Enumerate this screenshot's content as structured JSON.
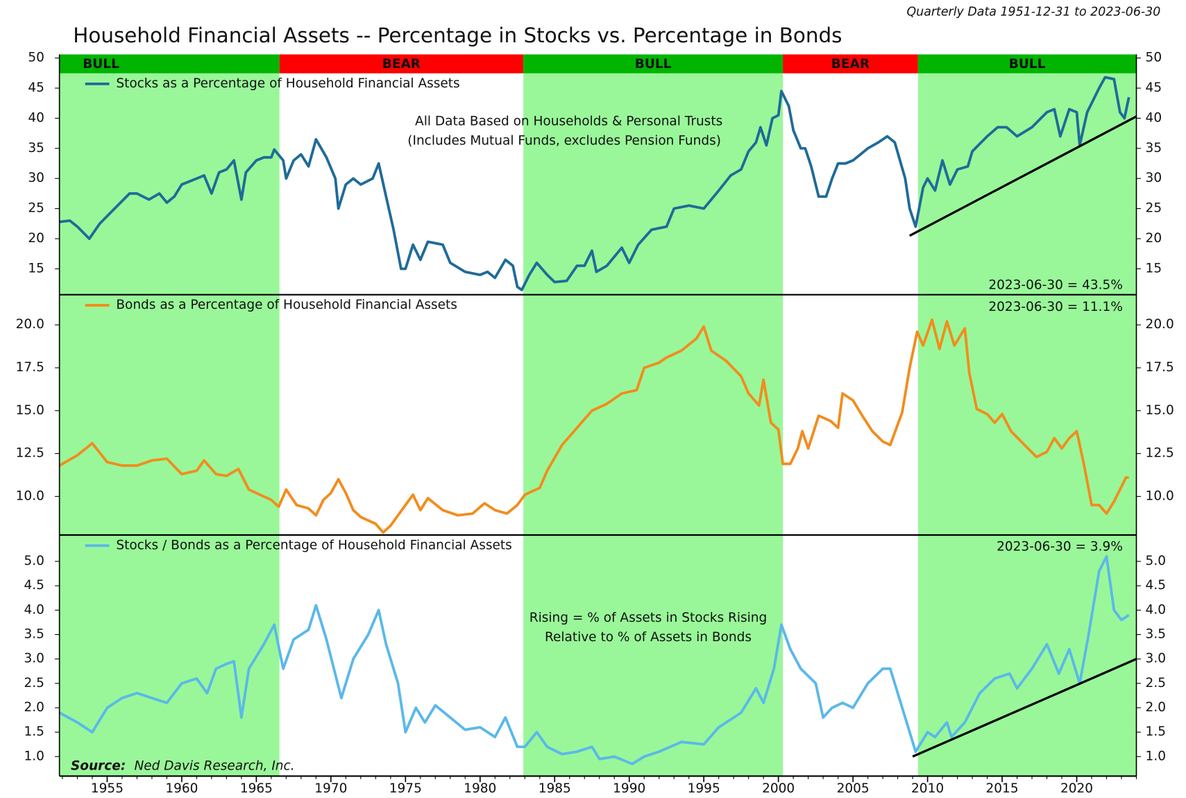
{
  "title": "Household Financial Assets -- Percentage in Stocks vs. Percentage in Bonds",
  "subtitle": "Quarterly Data 1951-12-31 to 2023-06-30",
  "xlim": [
    1951.8,
    2024
  ],
  "xticks": [
    1955,
    1960,
    1965,
    1970,
    1975,
    1980,
    1985,
    1990,
    1995,
    2000,
    2005,
    2010,
    2015,
    2020
  ],
  "shade_color": "#99f799",
  "regimes": [
    {
      "label": "BULL",
      "start": 1951.8,
      "end": 1966.55,
      "color": "#00b400",
      "shaded": true
    },
    {
      "label": "BEAR",
      "start": 1966.55,
      "end": 1982.9,
      "color": "#ff0000",
      "shaded": false
    },
    {
      "label": "BULL",
      "start": 1982.9,
      "end": 2000.3,
      "color": "#00b400",
      "shaded": true
    },
    {
      "label": "BEAR",
      "start": 2000.3,
      "end": 2009.36,
      "color": "#ff0000",
      "shaded": false
    },
    {
      "label": "BULL",
      "start": 2009.36,
      "end": 2024,
      "color": "#00b400",
      "shaded": true
    }
  ],
  "source_label": "Source:",
  "source": "Ned Davis Research, Inc.",
  "chart_data": [
    {
      "type": "line",
      "ylim": [
        10.7,
        50.6
      ],
      "yticks": [
        15,
        20,
        25,
        30,
        35,
        40,
        45,
        50
      ],
      "annotations": [
        "All Data Based on Households & Personal Trusts",
        "(Includes Mutual Funds, excludes Pension Funds)"
      ],
      "last_label": "2023-06-30 = 43.5%",
      "trendline": {
        "color": "#000000",
        "x": [
          2008.8,
          2024
        ],
        "values": [
          20.5,
          40.3
        ]
      },
      "series": [
        {
          "name": "Stocks as a Percentage of Household Financial Assets",
          "color": "#1f6b99",
          "x": [
            1951.8,
            1952.5,
            1953,
            1953.8,
            1954.5,
            1955.5,
            1956.5,
            1957,
            1957.8,
            1958.5,
            1959,
            1959.5,
            1960,
            1961,
            1961.5,
            1962,
            1962.5,
            1963,
            1963.5,
            1964,
            1964.3,
            1965,
            1965.5,
            1966,
            1966.2,
            1966.8,
            1967,
            1967.5,
            1968,
            1968.5,
            1969,
            1969.7,
            1970.3,
            1970.5,
            1971,
            1971.5,
            1972,
            1972.8,
            1973.2,
            1973.7,
            1974.2,
            1974.7,
            1975,
            1975.5,
            1976,
            1976.5,
            1977.5,
            1978,
            1979,
            1980,
            1980.5,
            1981,
            1981.7,
            1982.2,
            1982.5,
            1982.8,
            1983.3,
            1983.8,
            1984.5,
            1985,
            1985.8,
            1986.5,
            1987,
            1987.5,
            1987.8,
            1988.5,
            1989.5,
            1990,
            1990.6,
            1991.5,
            1992.5,
            1993,
            1994,
            1995,
            1996,
            1996.8,
            1997.5,
            1998,
            1998.5,
            1998.8,
            1999.2,
            1999.6,
            2000,
            2000.2,
            2000.7,
            2001,
            2001.5,
            2001.8,
            2002.2,
            2002.7,
            2003.2,
            2003.6,
            2004,
            2004.5,
            2005,
            2005.5,
            2006,
            2006.7,
            2007.3,
            2007.8,
            2008.5,
            2008.8,
            2009.2,
            2009.7,
            2010,
            2010.5,
            2011,
            2011.5,
            2012,
            2012.7,
            2013,
            2014,
            2014.7,
            2015.3,
            2016,
            2017,
            2018,
            2018.5,
            2018.9,
            2019.5,
            2020,
            2020.2,
            2020.7,
            2021.5,
            2021.9,
            2022.5,
            2022.9,
            2023.2,
            2023.5
          ],
          "values": [
            22.8,
            23,
            22,
            20,
            22.5,
            25,
            27.5,
            27.5,
            26.5,
            27.5,
            26,
            27,
            29,
            30,
            30.5,
            27.5,
            31,
            31.5,
            33,
            26.5,
            31,
            33,
            33.5,
            33.5,
            34.8,
            33,
            30,
            33,
            34,
            32,
            36.5,
            33.5,
            30,
            25,
            29,
            30,
            29,
            30,
            32.5,
            27,
            21.5,
            15,
            15,
            19,
            16.5,
            19.5,
            19,
            16,
            14.5,
            14,
            14.5,
            13.5,
            16.5,
            15.5,
            12,
            11.5,
            14,
            16,
            14,
            12.8,
            13,
            15.5,
            15.5,
            18,
            14.5,
            15.5,
            18.5,
            16,
            19,
            21.5,
            22,
            25,
            25.5,
            25,
            28,
            30.5,
            31.5,
            34.5,
            36,
            38.5,
            35.5,
            40,
            40.5,
            44.5,
            42,
            38,
            35,
            35,
            32,
            27,
            27,
            30,
            32.5,
            32.5,
            33,
            34,
            35,
            36,
            37,
            36,
            30,
            25,
            22,
            28.5,
            30,
            28,
            33,
            29,
            31.5,
            32,
            34.5,
            37,
            38.5,
            38.5,
            37,
            38.5,
            41,
            41.5,
            37,
            41.5,
            41,
            35.5,
            41,
            45,
            46.8,
            46.5,
            41,
            40,
            43.5
          ]
        }
      ]
    },
    {
      "type": "line",
      "ylim": [
        7.75,
        21.76
      ],
      "yticks": [
        {
          "value": 10,
          "label": "10.0"
        },
        {
          "value": 12.5,
          "label": "12.5"
        },
        {
          "value": 15,
          "label": "15.0"
        },
        {
          "value": 17.5,
          "label": "17.5"
        },
        {
          "value": 20,
          "label": "20.0"
        }
      ],
      "last_label": "2023-06-30 = 11.1%",
      "series": [
        {
          "name": "Bonds as a Percentage of Household Financial Assets",
          "color": "#f28c1e",
          "x": [
            1951.8,
            1953,
            1954,
            1955,
            1956,
            1957,
            1958,
            1959,
            1960,
            1961,
            1961.5,
            1962.3,
            1963,
            1963.8,
            1964.5,
            1965,
            1966,
            1966.5,
            1967,
            1967.7,
            1968.5,
            1969,
            1969.5,
            1970,
            1970.5,
            1971,
            1971.5,
            1972,
            1973,
            1973.5,
            1974,
            1975,
            1975.5,
            1976,
            1976.5,
            1977.5,
            1978.5,
            1979.5,
            1980.3,
            1981,
            1981.8,
            1982.5,
            1983,
            1984,
            1984.5,
            1985.5,
            1986.5,
            1987.5,
            1988.5,
            1989.5,
            1990.5,
            1991,
            1992,
            1992.5,
            1993.5,
            1994.5,
            1995,
            1995.5,
            1996.5,
            1997.5,
            1998,
            1998.7,
            1999,
            1999.5,
            2000,
            2000.3,
            2000.8,
            2001.3,
            2001.6,
            2002,
            2002.7,
            2003.5,
            2004,
            2004.3,
            2005,
            2005.7,
            2006.3,
            2007,
            2007.5,
            2008.3,
            2008.8,
            2009.3,
            2009.7,
            2010.3,
            2010.8,
            2011.3,
            2011.8,
            2012.5,
            2012.8,
            2013.3,
            2014,
            2014.5,
            2015,
            2015.6,
            2016.5,
            2017.3,
            2018,
            2018.5,
            2019,
            2019.5,
            2020,
            2020.5,
            2021,
            2021.5,
            2022,
            2022.5,
            2023.3,
            2023.5
          ],
          "values": [
            11.8,
            12.4,
            13.1,
            12,
            11.8,
            11.8,
            12.1,
            12.2,
            11.3,
            11.5,
            12.1,
            11.3,
            11.2,
            11.6,
            10.4,
            10.2,
            9.8,
            9.4,
            10.4,
            9.5,
            9.3,
            8.9,
            9.8,
            10.2,
            11,
            10.2,
            9.2,
            8.8,
            8.4,
            7.9,
            8.3,
            9.5,
            10.1,
            9.2,
            9.9,
            9.2,
            8.9,
            9,
            9.6,
            9.2,
            9,
            9.5,
            10.1,
            10.5,
            11.5,
            13,
            14,
            15,
            15.4,
            16,
            16.2,
            17.5,
            17.8,
            18.1,
            18.5,
            19.2,
            19.9,
            18.5,
            17.9,
            17,
            16,
            15.3,
            16.8,
            14.3,
            13.9,
            11.9,
            11.9,
            12.8,
            13.8,
            12.8,
            14.7,
            14.4,
            14,
            16,
            15.6,
            14.6,
            13.8,
            13.2,
            13,
            14.9,
            17.5,
            19.6,
            18.8,
            20.3,
            18.6,
            20.2,
            18.8,
            19.8,
            17.2,
            15.1,
            14.8,
            14.3,
            14.8,
            13.8,
            13,
            12.3,
            12.6,
            13.4,
            12.8,
            13.4,
            13.8,
            11.8,
            9.5,
            9.5,
            9,
            9.7,
            11.1,
            11.1
          ]
        }
      ]
    },
    {
      "type": "line",
      "ylim": [
        0.6,
        5.54
      ],
      "yticks": [
        {
          "value": 1,
          "label": "1.0"
        },
        {
          "value": 1.5,
          "label": "1.5"
        },
        {
          "value": 2,
          "label": "2.0"
        },
        {
          "value": 2.5,
          "label": "2.5"
        },
        {
          "value": 3,
          "label": "3.0"
        },
        {
          "value": 3.5,
          "label": "3.5"
        },
        {
          "value": 4,
          "label": "4.0"
        },
        {
          "value": 4.5,
          "label": "4.5"
        },
        {
          "value": 5,
          "label": "5.0"
        }
      ],
      "annotations": [
        "Rising = % of Assets in Stocks Rising",
        "Relative to % of Assets in Bonds"
      ],
      "last_label": "2023-06-30 = 3.9%",
      "trendline": {
        "color": "#000000",
        "x": [
          2009,
          2024
        ],
        "values": [
          1.0,
          3.0
        ]
      },
      "series": [
        {
          "name": "Stocks / Bonds as a Percentage of Household Financial Assets",
          "color": "#5bb8ea",
          "x": [
            1951.8,
            1953,
            1954,
            1955,
            1956,
            1957,
            1958,
            1959,
            1960,
            1961,
            1961.7,
            1962.3,
            1963,
            1963.5,
            1964,
            1964.5,
            1965.5,
            1966.2,
            1966.8,
            1967.5,
            1968.5,
            1969,
            1969.7,
            1970.7,
            1971.5,
            1972.5,
            1973.2,
            1973.7,
            1974.5,
            1975,
            1975.7,
            1976.3,
            1977,
            1978,
            1979,
            1980,
            1981,
            1981.7,
            1982.5,
            1983,
            1983.8,
            1984.5,
            1985.5,
            1986.5,
            1987.5,
            1988,
            1989,
            1990.2,
            1991,
            1992,
            1993.5,
            1995,
            1996,
            1997.5,
            1998.5,
            1999,
            1999.7,
            2000.2,
            2000.8,
            2001.5,
            2002.5,
            2003,
            2003.6,
            2004.3,
            2005,
            2006,
            2007,
            2007.5,
            2008.5,
            2009.2,
            2010,
            2010.5,
            2011.3,
            2011.6,
            2012.5,
            2013.5,
            2014.5,
            2015.5,
            2016,
            2017,
            2018,
            2018.8,
            2019.5,
            2020.2,
            2020.8,
            2021.5,
            2022,
            2022.5,
            2023,
            2023.5
          ],
          "values": [
            1.9,
            1.7,
            1.5,
            2,
            2.2,
            2.3,
            2.2,
            2.1,
            2.5,
            2.6,
            2.3,
            2.8,
            2.9,
            2.95,
            1.8,
            2.8,
            3.3,
            3.7,
            2.8,
            3.4,
            3.6,
            4.1,
            3.4,
            2.2,
            3,
            3.5,
            4,
            3.3,
            2.5,
            1.5,
            2,
            1.7,
            2.05,
            1.8,
            1.55,
            1.6,
            1.4,
            1.8,
            1.2,
            1.2,
            1.5,
            1.2,
            1.05,
            1.1,
            1.2,
            0.95,
            1,
            0.85,
            1,
            1.1,
            1.3,
            1.25,
            1.6,
            1.9,
            2.4,
            2.1,
            2.8,
            3.7,
            3.2,
            2.8,
            2.5,
            1.8,
            2,
            2.1,
            2,
            2.5,
            2.8,
            2.8,
            1.8,
            1.1,
            1.5,
            1.4,
            1.7,
            1.4,
            1.7,
            2.3,
            2.6,
            2.7,
            2.4,
            2.8,
            3.3,
            2.7,
            3.2,
            2.5,
            3.5,
            4.8,
            5.1,
            4,
            3.8,
            3.9
          ]
        }
      ]
    }
  ]
}
